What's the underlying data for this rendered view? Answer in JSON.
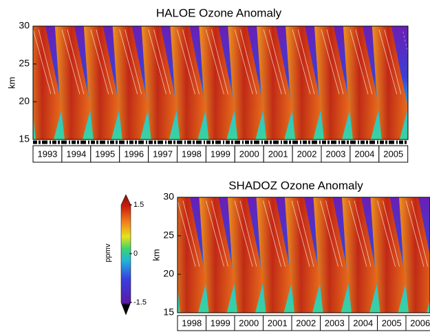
{
  "chart_data": [
    {
      "type": "heatmap",
      "title": "HALOE Ozone Anomaly",
      "ylabel": "km",
      "ylim": [
        15,
        30
      ],
      "yticks": [
        15,
        20,
        25,
        30
      ],
      "categories": [
        "1993",
        "1994",
        "1995",
        "1996",
        "1997",
        "1998",
        "1999",
        "2000",
        "2001",
        "2002",
        "2003",
        "2004",
        "2005"
      ]
    },
    {
      "type": "heatmap",
      "title": "SHADOZ Ozone Anomaly",
      "ylabel": "km",
      "ylim": [
        15,
        30
      ],
      "yticks": [
        15,
        20,
        25,
        30
      ],
      "categories": [
        "1998",
        "1999",
        "2000",
        "2001",
        "2002",
        "2003",
        "2004",
        "2005",
        "2006"
      ],
      "colorbar": {
        "label": "ppmv",
        "lim": [
          -1.5,
          1.5
        ],
        "ticks": [
          1.5,
          0,
          -1.5
        ]
      }
    }
  ]
}
